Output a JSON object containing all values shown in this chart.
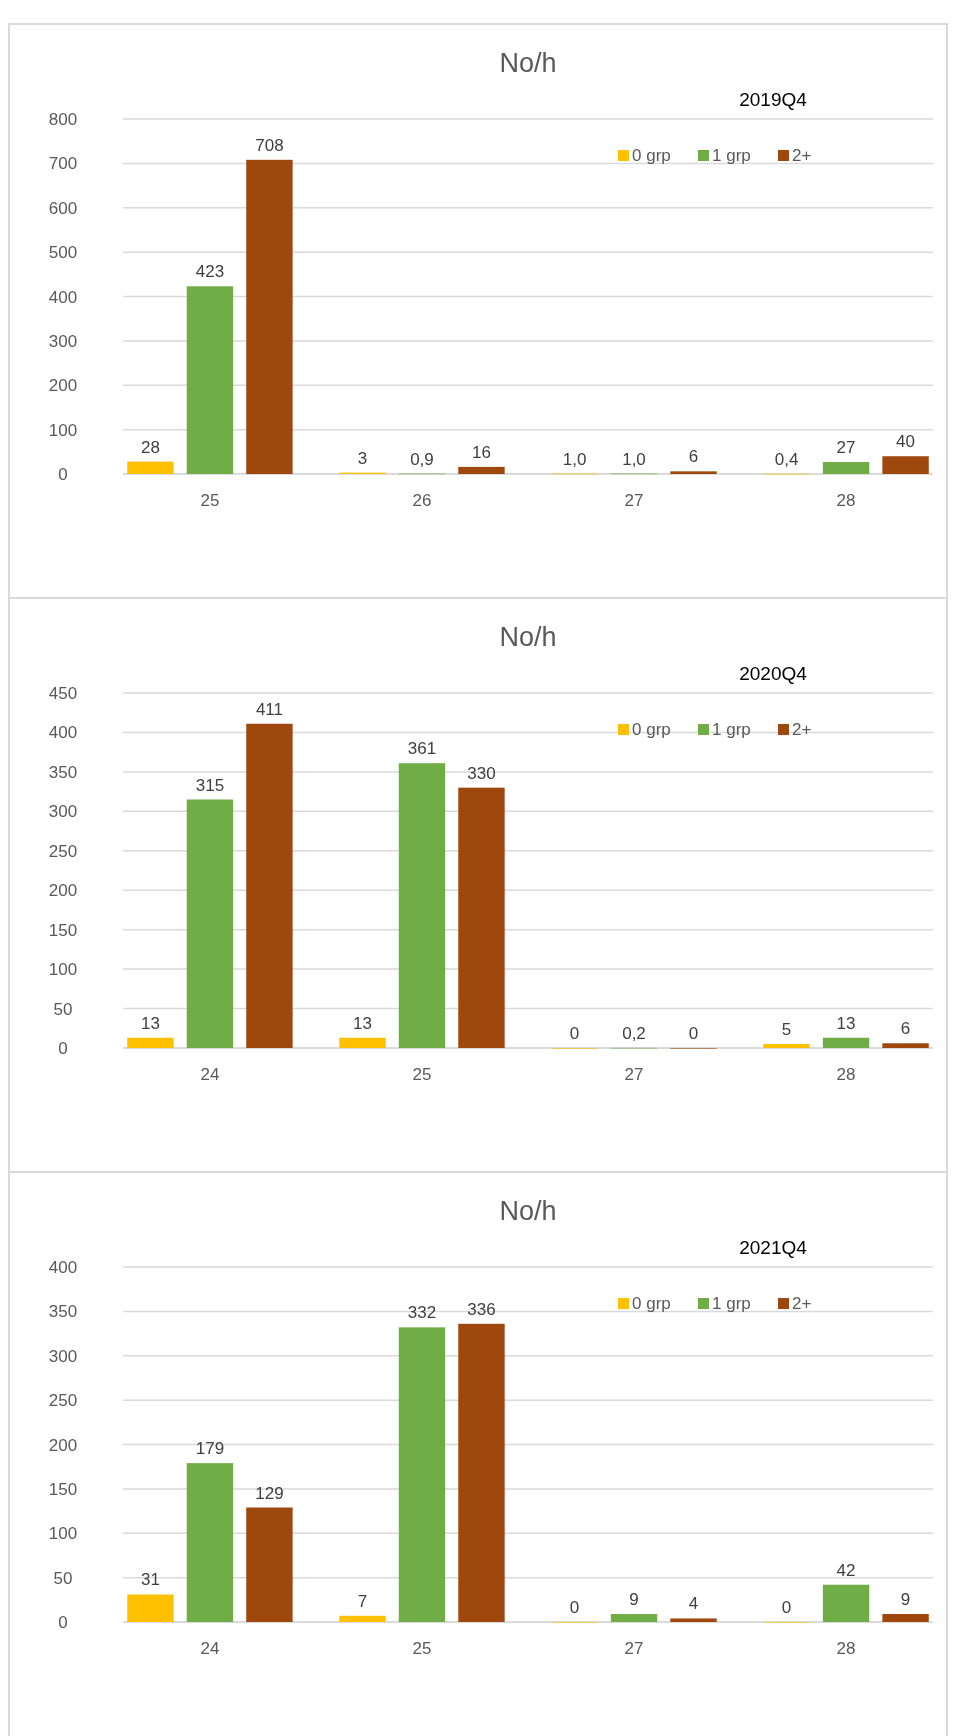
{
  "chart_data": [
    {
      "type": "bar",
      "title": "No/h",
      "subtitle": "2019Q4",
      "categories": [
        "25",
        "26",
        "27",
        "28"
      ],
      "ylim": [
        0,
        800
      ],
      "yticks": [
        0,
        100,
        200,
        300,
        400,
        500,
        600,
        700,
        800
      ],
      "grid": "y",
      "legend": "top right",
      "series": [
        {
          "name": "0 grp",
          "color": "#ffc000",
          "values": [
            28,
            3,
            1.0,
            0.4
          ],
          "value_labels": [
            "28",
            "3",
            "1,0",
            "0,4"
          ]
        },
        {
          "name": "1 grp",
          "color": "#70ad47",
          "values": [
            423,
            0.9,
            1.0,
            27
          ],
          "value_labels": [
            "423",
            "0,9",
            "1,0",
            "27"
          ]
        },
        {
          "name": "2+",
          "color": "#9e480e",
          "values": [
            708,
            16,
            6,
            40
          ],
          "value_labels": [
            "708",
            "16",
            "6",
            "40"
          ]
        }
      ]
    },
    {
      "type": "bar",
      "title": "No/h",
      "subtitle": "2020Q4",
      "categories": [
        "24",
        "25",
        "27",
        "28"
      ],
      "ylim": [
        0,
        450
      ],
      "yticks": [
        0,
        50,
        100,
        150,
        200,
        250,
        300,
        350,
        400,
        450
      ],
      "grid": "y",
      "legend": "top right",
      "series": [
        {
          "name": "0 grp",
          "color": "#ffc000",
          "values": [
            13,
            13,
            0,
            5
          ],
          "value_labels": [
            "13",
            "13",
            "0",
            "5"
          ]
        },
        {
          "name": "1 grp",
          "color": "#70ad47",
          "values": [
            315,
            361,
            0.2,
            13
          ],
          "value_labels": [
            "315",
            "361",
            "0,2",
            "13"
          ]
        },
        {
          "name": "2+",
          "color": "#9e480e",
          "values": [
            411,
            330,
            0,
            6
          ],
          "value_labels": [
            "411",
            "330",
            "0",
            "6"
          ]
        }
      ]
    },
    {
      "type": "bar",
      "title": "No/h",
      "subtitle": "2021Q4",
      "categories": [
        "24",
        "25",
        "27",
        "28"
      ],
      "ylim": [
        0,
        400
      ],
      "yticks": [
        0,
        50,
        100,
        150,
        200,
        250,
        300,
        350,
        400
      ],
      "grid": "y",
      "legend": "top right",
      "series": [
        {
          "name": "0 grp",
          "color": "#ffc000",
          "values": [
            31,
            7,
            0,
            0
          ],
          "value_labels": [
            "31",
            "7",
            "0",
            "0"
          ]
        },
        {
          "name": "1 grp",
          "color": "#70ad47",
          "values": [
            179,
            332,
            9,
            42
          ],
          "value_labels": [
            "179",
            "332",
            "9",
            "42"
          ]
        },
        {
          "name": "2+",
          "color": "#9e480e",
          "values": [
            129,
            336,
            4,
            9
          ],
          "value_labels": [
            "129",
            "336",
            "4",
            "9"
          ]
        }
      ]
    }
  ]
}
